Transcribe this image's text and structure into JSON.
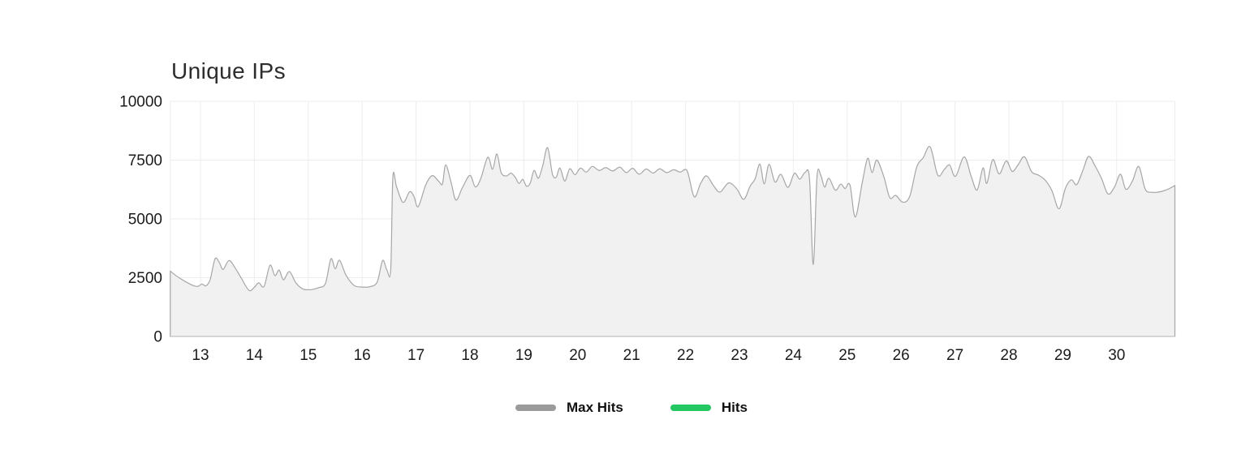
{
  "chart_data": {
    "type": "area",
    "title": "Unique IPs",
    "xlabel": "",
    "ylabel": "",
    "x_ticks": [
      13,
      14,
      15,
      16,
      17,
      18,
      19,
      20,
      21,
      22,
      23,
      24,
      25,
      26,
      27,
      28,
      29,
      30
    ],
    "y_ticks": [
      0,
      2500,
      5000,
      7500,
      10000
    ],
    "xlim": [
      12.44,
      31.08
    ],
    "ylim": [
      0,
      10000
    ],
    "grid": true,
    "legend_position": "bottom",
    "colors": {
      "gridline": "#ededed",
      "axis_line": "#c8c8c8",
      "tick_label": "#1b1b1b"
    },
    "series": [
      {
        "name": "Max Hits",
        "color": "#9b9b9b",
        "fill": "#f1f1f1",
        "stroke": "#a6a6a6",
        "points": [
          [
            12.44,
            2780
          ],
          [
            12.55,
            2580
          ],
          [
            12.7,
            2360
          ],
          [
            12.85,
            2180
          ],
          [
            12.95,
            2130
          ],
          [
            13.03,
            2230
          ],
          [
            13.1,
            2150
          ],
          [
            13.18,
            2420
          ],
          [
            13.27,
            3300
          ],
          [
            13.35,
            3140
          ],
          [
            13.42,
            2850
          ],
          [
            13.53,
            3230
          ],
          [
            13.65,
            2890
          ],
          [
            13.76,
            2470
          ],
          [
            13.9,
            1960
          ],
          [
            14.0,
            2090
          ],
          [
            14.08,
            2280
          ],
          [
            14.18,
            2130
          ],
          [
            14.29,
            3030
          ],
          [
            14.38,
            2590
          ],
          [
            14.46,
            2820
          ],
          [
            14.54,
            2410
          ],
          [
            14.65,
            2760
          ],
          [
            14.77,
            2280
          ],
          [
            14.9,
            2020
          ],
          [
            15.05,
            1990
          ],
          [
            15.2,
            2080
          ],
          [
            15.32,
            2260
          ],
          [
            15.42,
            3300
          ],
          [
            15.5,
            2880
          ],
          [
            15.58,
            3240
          ],
          [
            15.7,
            2610
          ],
          [
            15.85,
            2170
          ],
          [
            16.0,
            2100
          ],
          [
            16.15,
            2120
          ],
          [
            16.28,
            2320
          ],
          [
            16.38,
            3230
          ],
          [
            16.46,
            2820
          ],
          [
            16.53,
            2840
          ],
          [
            16.57,
            6780
          ],
          [
            16.64,
            6350
          ],
          [
            16.76,
            5700
          ],
          [
            16.88,
            6150
          ],
          [
            16.96,
            5960
          ],
          [
            17.04,
            5520
          ],
          [
            17.18,
            6450
          ],
          [
            17.3,
            6840
          ],
          [
            17.42,
            6600
          ],
          [
            17.49,
            6490
          ],
          [
            17.55,
            7300
          ],
          [
            17.65,
            6550
          ],
          [
            17.74,
            5800
          ],
          [
            17.86,
            6330
          ],
          [
            18.0,
            6850
          ],
          [
            18.1,
            6360
          ],
          [
            18.2,
            6710
          ],
          [
            18.33,
            7620
          ],
          [
            18.42,
            7110
          ],
          [
            18.5,
            7760
          ],
          [
            18.58,
            6960
          ],
          [
            18.68,
            6830
          ],
          [
            18.76,
            6950
          ],
          [
            18.84,
            6770
          ],
          [
            18.91,
            6510
          ],
          [
            18.98,
            6680
          ],
          [
            19.05,
            6390
          ],
          [
            19.12,
            6530
          ],
          [
            19.19,
            7060
          ],
          [
            19.27,
            6730
          ],
          [
            19.35,
            7260
          ],
          [
            19.44,
            8030
          ],
          [
            19.53,
            6910
          ],
          [
            19.6,
            6770
          ],
          [
            19.67,
            7160
          ],
          [
            19.76,
            6610
          ],
          [
            19.85,
            7130
          ],
          [
            19.95,
            6880
          ],
          [
            20.05,
            7160
          ],
          [
            20.16,
            6990
          ],
          [
            20.27,
            7230
          ],
          [
            20.4,
            7060
          ],
          [
            20.52,
            7180
          ],
          [
            20.65,
            7040
          ],
          [
            20.78,
            7200
          ],
          [
            20.9,
            6970
          ],
          [
            21.02,
            7150
          ],
          [
            21.14,
            6900
          ],
          [
            21.27,
            7120
          ],
          [
            21.4,
            6950
          ],
          [
            21.52,
            7130
          ],
          [
            21.65,
            6970
          ],
          [
            21.78,
            7090
          ],
          [
            21.9,
            6990
          ],
          [
            22.03,
            7040
          ],
          [
            22.16,
            5940
          ],
          [
            22.28,
            6510
          ],
          [
            22.39,
            6830
          ],
          [
            22.52,
            6410
          ],
          [
            22.64,
            6140
          ],
          [
            22.8,
            6530
          ],
          [
            22.95,
            6280
          ],
          [
            23.08,
            5830
          ],
          [
            23.2,
            6400
          ],
          [
            23.29,
            6700
          ],
          [
            23.38,
            7330
          ],
          [
            23.46,
            6490
          ],
          [
            23.55,
            7320
          ],
          [
            23.66,
            6570
          ],
          [
            23.77,
            6900
          ],
          [
            23.9,
            6340
          ],
          [
            24.02,
            6940
          ],
          [
            24.12,
            6690
          ],
          [
            24.22,
            6980
          ],
          [
            24.3,
            6710
          ],
          [
            24.37,
            3060
          ],
          [
            24.44,
            6810
          ],
          [
            24.51,
            6850
          ],
          [
            24.58,
            6350
          ],
          [
            24.66,
            6730
          ],
          [
            24.78,
            6220
          ],
          [
            24.88,
            6480
          ],
          [
            24.96,
            6290
          ],
          [
            25.05,
            6450
          ],
          [
            25.15,
            5080
          ],
          [
            25.28,
            6560
          ],
          [
            25.38,
            7580
          ],
          [
            25.46,
            6970
          ],
          [
            25.55,
            7500
          ],
          [
            25.68,
            6790
          ],
          [
            25.79,
            5900
          ],
          [
            25.9,
            6000
          ],
          [
            26.03,
            5710
          ],
          [
            26.16,
            5960
          ],
          [
            26.29,
            7210
          ],
          [
            26.41,
            7600
          ],
          [
            26.54,
            8060
          ],
          [
            26.68,
            6860
          ],
          [
            26.8,
            7100
          ],
          [
            26.9,
            7290
          ],
          [
            27.01,
            6810
          ],
          [
            27.17,
            7640
          ],
          [
            27.3,
            6810
          ],
          [
            27.41,
            6230
          ],
          [
            27.52,
            7170
          ],
          [
            27.59,
            6510
          ],
          [
            27.7,
            7520
          ],
          [
            27.82,
            6910
          ],
          [
            27.95,
            7470
          ],
          [
            28.06,
            7020
          ],
          [
            28.17,
            7300
          ],
          [
            28.29,
            7640
          ],
          [
            28.42,
            7010
          ],
          [
            28.55,
            6860
          ],
          [
            28.68,
            6630
          ],
          [
            28.8,
            6190
          ],
          [
            28.93,
            5430
          ],
          [
            29.05,
            6310
          ],
          [
            29.16,
            6660
          ],
          [
            29.26,
            6460
          ],
          [
            29.38,
            7110
          ],
          [
            29.48,
            7660
          ],
          [
            29.6,
            7250
          ],
          [
            29.72,
            6710
          ],
          [
            29.84,
            6060
          ],
          [
            29.96,
            6360
          ],
          [
            30.07,
            6900
          ],
          [
            30.17,
            6260
          ],
          [
            30.29,
            6600
          ],
          [
            30.41,
            7230
          ],
          [
            30.53,
            6260
          ],
          [
            30.66,
            6130
          ],
          [
            30.8,
            6150
          ],
          [
            30.95,
            6260
          ],
          [
            31.08,
            6420
          ]
        ]
      },
      {
        "name": "Hits",
        "color": "#23c862",
        "points": []
      }
    ]
  }
}
